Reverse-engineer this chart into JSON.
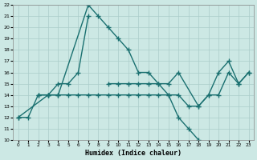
{
  "xlabel": "Humidex (Indice chaleur)",
  "bg_color": "#cce8e4",
  "grid_color": "#aaccca",
  "line_color": "#1a7070",
  "ylim": [
    10,
    22
  ],
  "xlim": [
    -0.5,
    23.5
  ],
  "yticks": [
    10,
    11,
    12,
    13,
    14,
    15,
    16,
    17,
    18,
    19,
    20,
    21,
    22
  ],
  "xticks": [
    0,
    1,
    2,
    3,
    4,
    5,
    6,
    7,
    8,
    9,
    10,
    11,
    12,
    13,
    14,
    15,
    16,
    17,
    18,
    19,
    20,
    21,
    22,
    23
  ],
  "curve1_x": [
    0,
    1,
    2,
    3,
    4,
    7,
    8,
    9,
    10,
    11,
    12,
    13,
    14,
    15,
    16,
    17,
    18
  ],
  "curve1_y": [
    12,
    12,
    14,
    14,
    14,
    22,
    21,
    20,
    19,
    18,
    16,
    16,
    15,
    14,
    12,
    11,
    10
  ],
  "curve2_x": [
    2,
    3,
    4,
    5,
    6,
    7
  ],
  "curve2_y": [
    14,
    14,
    15,
    15,
    16,
    21
  ],
  "curve3_x": [
    0,
    3,
    4,
    5,
    6,
    7,
    8,
    9,
    10,
    11,
    12,
    13,
    14,
    15,
    16,
    17,
    18,
    19,
    20,
    21,
    22,
    23
  ],
  "curve3_y": [
    12,
    14,
    14,
    14,
    14,
    14,
    14,
    14,
    14,
    14,
    14,
    14,
    14,
    14,
    14,
    13,
    13,
    14,
    14,
    16,
    15,
    16
  ],
  "curve4_x": [
    9,
    10,
    11,
    12,
    13,
    14,
    15,
    16,
    18,
    19,
    20,
    21,
    22,
    23
  ],
  "curve4_y": [
    15,
    15,
    15,
    15,
    15,
    15,
    15,
    16,
    13,
    14,
    16,
    17,
    15,
    16
  ]
}
